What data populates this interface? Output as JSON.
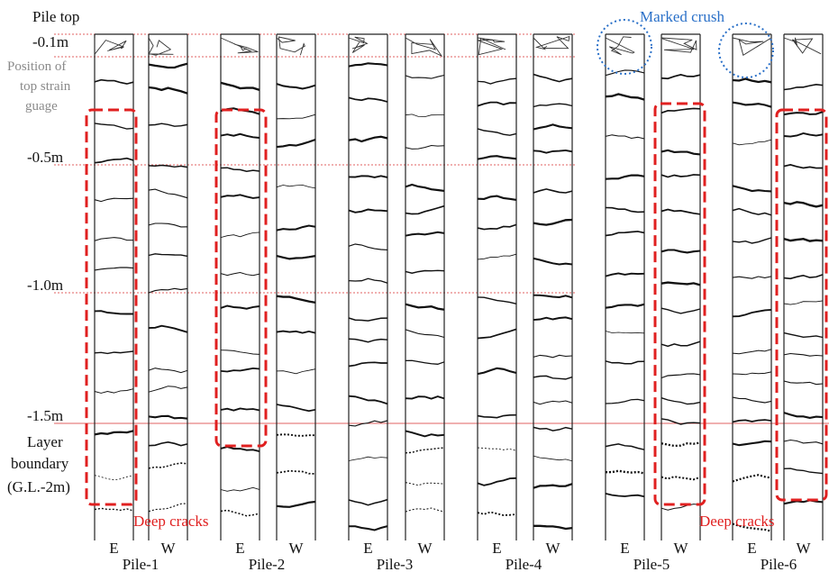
{
  "depth_labels": [
    "Pile top",
    "-0.1m",
    "-0.5m",
    "-1.0m",
    "-1.5m"
  ],
  "strain_gauge_note": [
    "Position of",
    "top strain",
    "guage"
  ],
  "layer_boundary": [
    "Layer",
    "boundary",
    "(G.L.-2m)"
  ],
  "piles": [
    {
      "name": "Pile-1",
      "faces": [
        "E",
        "W"
      ]
    },
    {
      "name": "Pile-2",
      "faces": [
        "E",
        "W"
      ]
    },
    {
      "name": "Pile-3",
      "faces": [
        "E",
        "W"
      ]
    },
    {
      "name": "Pile-4",
      "faces": [
        "E",
        "W"
      ]
    },
    {
      "name": "Pile-5",
      "faces": [
        "E",
        "W"
      ]
    },
    {
      "name": "Pile-6",
      "faces": [
        "E",
        "W"
      ]
    }
  ],
  "annotations": {
    "marked_crush": "Marked crush",
    "deep_cracks": [
      "Deep cracks",
      "Deep cracks"
    ]
  }
}
